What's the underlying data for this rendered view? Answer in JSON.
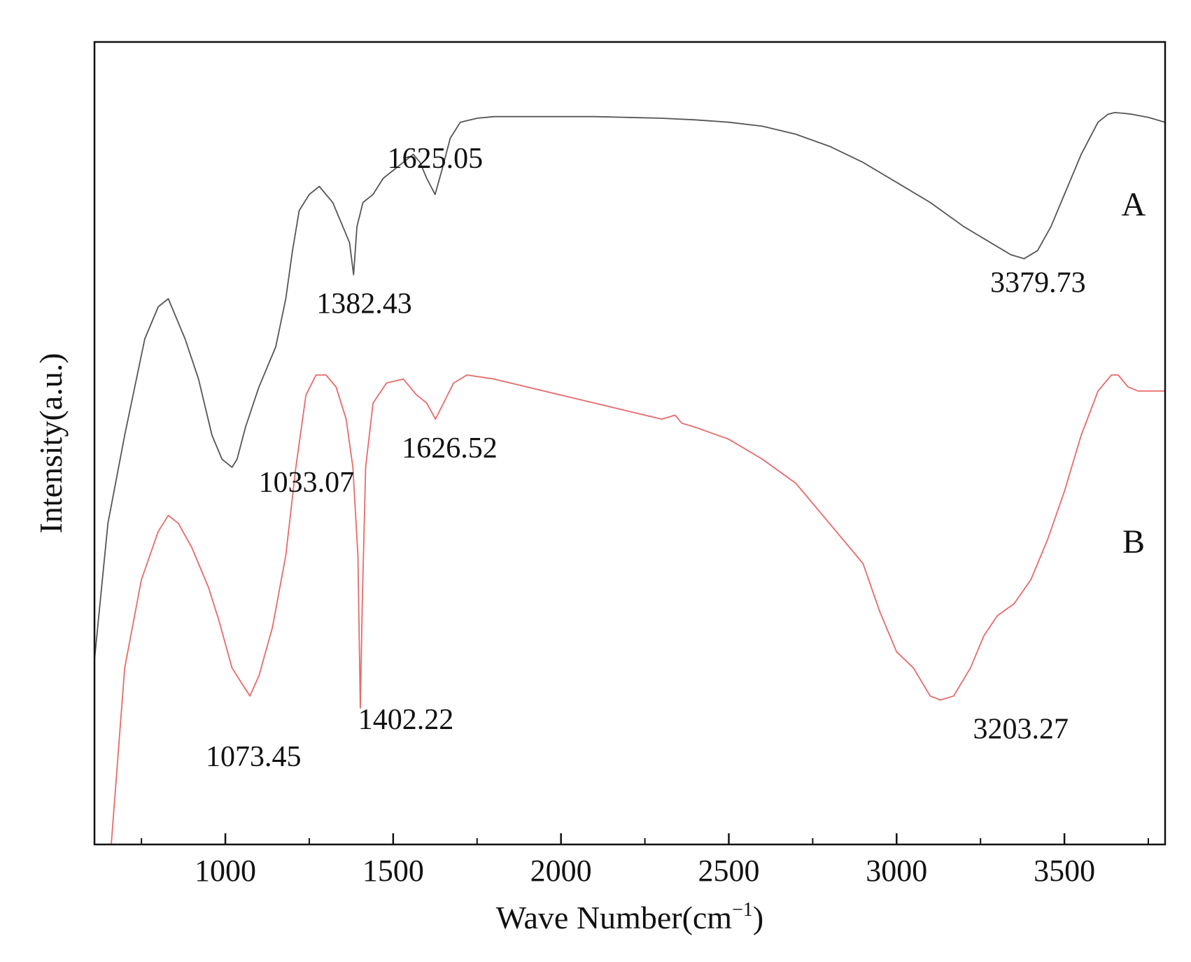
{
  "chart_data": {
    "type": "line",
    "title": "",
    "xlabel": "Wave Number(cm",
    "xlabel_sup": "−1",
    "xlabel_close": ")",
    "ylabel": "Intensity(a.u.)",
    "xlim": [
      610,
      3800
    ],
    "ylim": [
      0,
      100
    ],
    "y_ticks_shown": false,
    "grid": false,
    "legend": "none",
    "x_ticks": [
      1000,
      1500,
      2000,
      2500,
      3000,
      3500
    ],
    "x_tick_labels": [
      "1000",
      "1500",
      "2000",
      "2500",
      "3000",
      "3500"
    ],
    "x_minor_ticks": [
      750,
      1250,
      1750,
      2250,
      2750,
      3250,
      3750
    ],
    "series": [
      {
        "name": "A",
        "color": "#555555",
        "x": [
          610,
          650,
          700,
          760,
          800,
          830,
          850,
          880,
          920,
          960,
          990,
          1020,
          1035,
          1060,
          1100,
          1150,
          1180,
          1200,
          1220,
          1250,
          1280,
          1320,
          1350,
          1370,
          1382,
          1392,
          1410,
          1440,
          1470,
          1500,
          1530,
          1560,
          1580,
          1600,
          1625,
          1645,
          1670,
          1700,
          1750,
          1800,
          1900,
          2000,
          2100,
          2200,
          2300,
          2400,
          2500,
          2600,
          2700,
          2800,
          2900,
          3000,
          3100,
          3200,
          3280,
          3340,
          3380,
          3420,
          3460,
          3500,
          3550,
          3600,
          3630,
          3650,
          3680,
          3700,
          3750,
          3800
        ],
        "y": [
          23,
          40,
          51,
          63,
          67,
          68,
          66,
          63,
          58,
          51,
          48,
          47,
          48,
          52,
          57,
          62,
          68,
          74,
          79,
          81,
          82,
          80,
          77,
          75,
          71,
          77,
          80,
          81,
          83,
          84,
          85,
          86,
          85,
          83,
          81,
          84,
          88,
          90,
          90.5,
          90.7,
          90.7,
          90.7,
          90.7,
          90.6,
          90.5,
          90.3,
          90,
          89.5,
          88.5,
          87,
          85,
          82.5,
          80,
          77,
          75,
          73.5,
          73,
          74,
          77,
          81,
          86,
          90,
          91,
          91.2,
          91.1,
          91,
          90.6,
          90
        ]
      },
      {
        "name": "B",
        "color": "#e86a6a",
        "x": [
          660,
          700,
          750,
          800,
          830,
          860,
          900,
          950,
          980,
          1020,
          1050,
          1073,
          1100,
          1140,
          1180,
          1210,
          1240,
          1270,
          1300,
          1330,
          1360,
          1380,
          1395,
          1402,
          1408,
          1418,
          1440,
          1480,
          1530,
          1570,
          1600,
          1626,
          1650,
          1680,
          1720,
          1800,
          1900,
          2000,
          2100,
          2200,
          2300,
          2340,
          2360,
          2400,
          2500,
          2600,
          2700,
          2800,
          2900,
          2950,
          3000,
          3050,
          3100,
          3130,
          3170,
          3220,
          3260,
          3300,
          3350,
          3400,
          3450,
          3500,
          3550,
          3600,
          3640,
          3660,
          3690,
          3720,
          3750,
          3800
        ],
        "y": [
          0,
          22,
          33,
          39,
          41,
          40,
          37,
          32,
          28,
          22,
          20,
          18.5,
          21,
          27,
          36,
          47,
          56,
          58.5,
          58.5,
          57,
          53,
          47,
          36,
          17,
          30,
          47,
          55,
          57.5,
          58,
          56,
          55,
          53,
          55,
          57.5,
          58.5,
          58,
          57,
          56,
          55,
          54,
          53,
          53.5,
          52.5,
          52,
          50.5,
          48,
          45,
          40,
          35,
          29,
          24,
          22,
          18.5,
          18,
          18.5,
          22,
          26,
          28.5,
          30,
          33,
          38,
          44,
          51,
          56.5,
          58.5,
          58.5,
          57,
          56.5,
          56.5,
          56.5
        ]
      }
    ],
    "annotations": [
      {
        "text": "1382.43",
        "series": "A",
        "x": 1382.43,
        "y": 71
      },
      {
        "text": "1625.05",
        "series": "A",
        "x": 1625.05,
        "y": 81
      },
      {
        "text": "3379.73",
        "series": "A",
        "x": 3379.73,
        "y": 73
      },
      {
        "text": "1033.07",
        "series": "A",
        "x": 1033.07,
        "y": 47
      },
      {
        "text": "1626.52",
        "series": "B",
        "x": 1626.52,
        "y": 53
      },
      {
        "text": "1073.45",
        "series": "B",
        "x": 1073.45,
        "y": 18.5
      },
      {
        "text": "1402.22",
        "series": "B",
        "x": 1402.22,
        "y": 17
      },
      {
        "text": "3203.27",
        "series": "B",
        "x": 3203.27,
        "y": 18
      }
    ],
    "series_labels": [
      {
        "text": "A",
        "series": "A"
      },
      {
        "text": "B",
        "series": "B"
      }
    ]
  }
}
